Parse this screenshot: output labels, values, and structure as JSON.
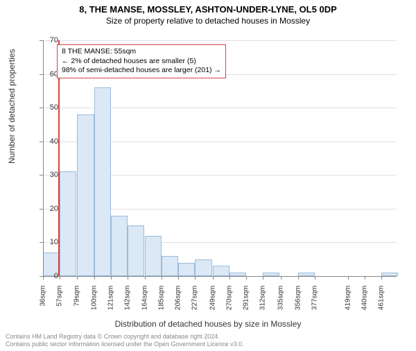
{
  "title_main": "8, THE MANSE, MOSSLEY, ASHTON-UNDER-LYNE, OL5 0DP",
  "title_sub": "Size of property relative to detached houses in Mossley",
  "y_axis_label": "Number of detached properties",
  "x_axis_label": "Distribution of detached houses by size in Mossley",
  "info_box": {
    "line1": "8 THE MANSE: 55sqm",
    "line2": "← 2% of detached houses are smaller (5)",
    "line3": "98% of semi-detached houses are larger (201) →"
  },
  "footer": {
    "line1": "Contains HM Land Registry data © Crown copyright and database right 2024.",
    "line2": "Contains public sector information licensed under the Open Government Licence v3.0."
  },
  "chart": {
    "type": "histogram",
    "background_color": "#ffffff",
    "grid_color": "#e0e0e0",
    "axis_color": "#888888",
    "bar_fill": "#dbe8f5",
    "bar_border": "#9abbdc",
    "marker_color": "#d94040",
    "marker_value": 55,
    "x_min": 36,
    "x_max": 480,
    "ylim": [
      0,
      70
    ],
    "ytick_step": 10,
    "x_ticks": [
      36,
      57,
      79,
      100,
      121,
      142,
      164,
      185,
      206,
      227,
      249,
      270,
      291,
      312,
      335,
      356,
      377,
      419,
      440,
      461
    ],
    "x_tick_suffix": "sqm",
    "bars": [
      {
        "x": 36,
        "h": 7
      },
      {
        "x": 57,
        "h": 31
      },
      {
        "x": 79,
        "h": 48
      },
      {
        "x": 100,
        "h": 56
      },
      {
        "x": 121,
        "h": 18
      },
      {
        "x": 142,
        "h": 15
      },
      {
        "x": 164,
        "h": 12
      },
      {
        "x": 185,
        "h": 6
      },
      {
        "x": 206,
        "h": 4
      },
      {
        "x": 227,
        "h": 5
      },
      {
        "x": 249,
        "h": 3
      },
      {
        "x": 270,
        "h": 1
      },
      {
        "x": 291,
        "h": 0
      },
      {
        "x": 312,
        "h": 1
      },
      {
        "x": 335,
        "h": 0
      },
      {
        "x": 356,
        "h": 1
      },
      {
        "x": 377,
        "h": 0
      },
      {
        "x": 398,
        "h": 0
      },
      {
        "x": 419,
        "h": 0
      },
      {
        "x": 440,
        "h": 0
      },
      {
        "x": 461,
        "h": 1
      }
    ],
    "bar_width_units": 21,
    "title_fontsize": 13,
    "label_fontsize": 12,
    "tick_fontsize": 10
  }
}
